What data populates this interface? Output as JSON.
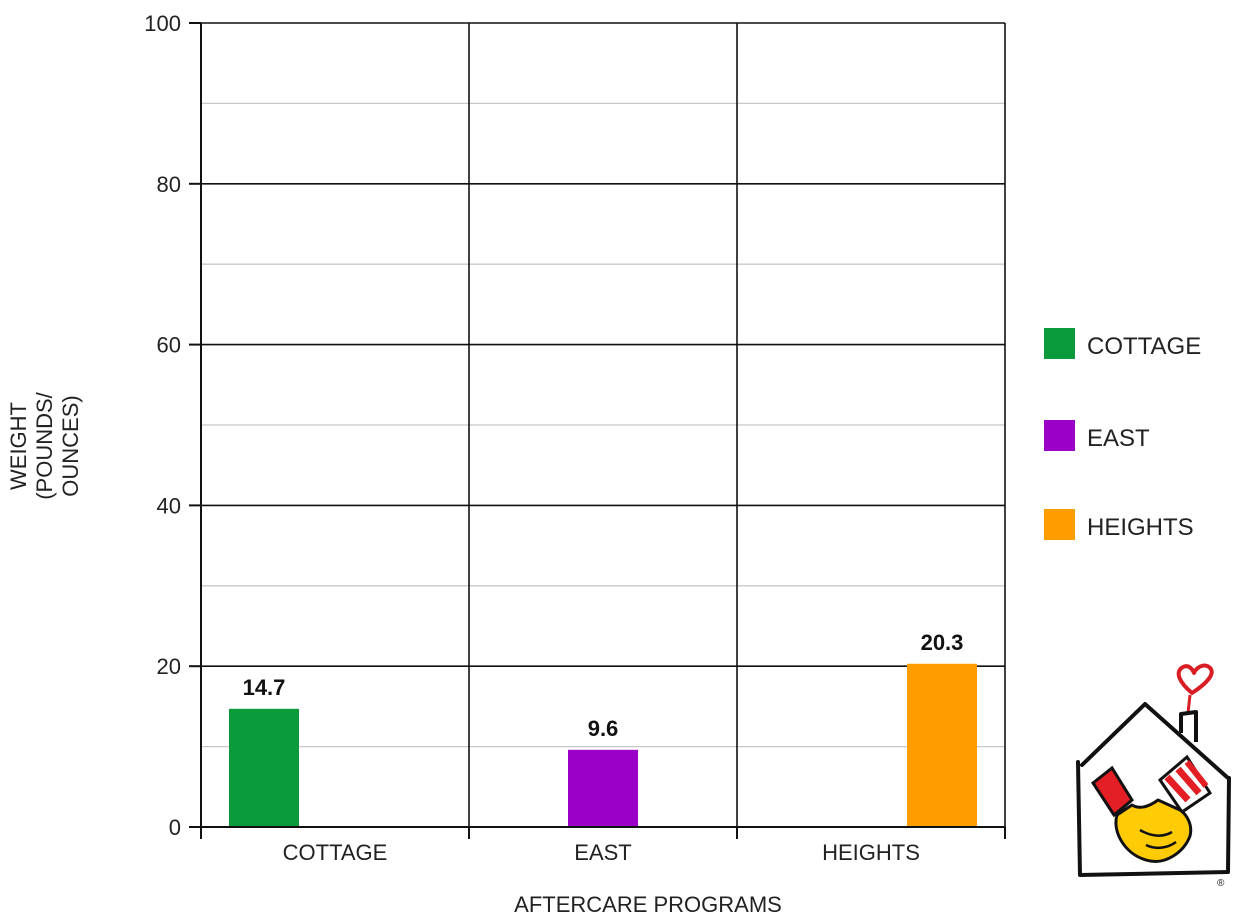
{
  "chart_data": {
    "type": "bar",
    "categories": [
      "COTTAGE",
      "EAST",
      "HEIGHTS"
    ],
    "values": [
      14.7,
      9.6,
      20.3
    ],
    "value_labels": [
      "14.7",
      "9.6",
      "20.3"
    ],
    "colors": [
      "#0a9a3c",
      "#9b00c8",
      "#ff9d00"
    ],
    "xlabel": "AFTERCARE PROGRAMS",
    "ylabel_lines": [
      "WEIGHT",
      "(POUNDS/",
      "OUNCES)"
    ],
    "ylim": [
      0,
      100
    ],
    "yticks": [
      0,
      20,
      40,
      60,
      80,
      100
    ],
    "ytick_labels": [
      "0",
      "20",
      "40",
      "60",
      "80",
      "100"
    ],
    "minor_gridlines": true,
    "legend": {
      "position": "right",
      "entries": [
        "COTTAGE",
        "EAST",
        "HEIGHTS"
      ]
    }
  },
  "logo": {
    "name": "house-hands-heart-logo",
    "trademark": "®"
  }
}
